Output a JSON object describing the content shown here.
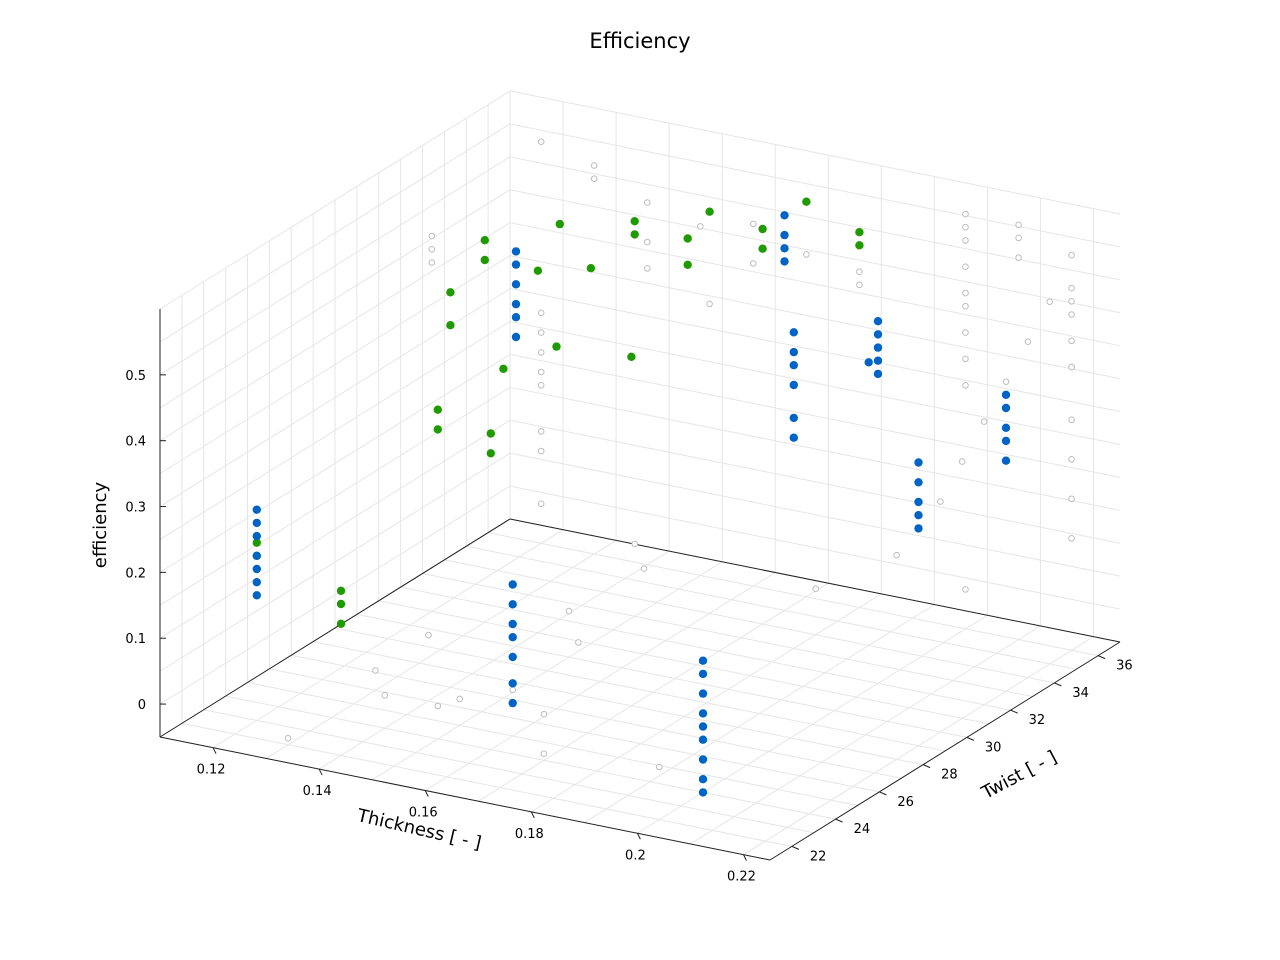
{
  "chart_data": {
    "type": "scatter",
    "title": "Efficiency",
    "xlabel": "Thickness [ - ]",
    "ylabel": "Twist [ - ]",
    "zlabel": "efficiency",
    "xlim": [
      0.11,
      0.225
    ],
    "ylim": [
      21,
      37
    ],
    "zlim": [
      -0.05,
      0.6
    ],
    "xticks": [
      "0.12",
      "0.14",
      "0.16",
      "0.18",
      "0.2",
      "0.22"
    ],
    "yticks": [
      "22",
      "24",
      "26",
      "28",
      "30",
      "32",
      "34",
      "36"
    ],
    "zticks": [
      "0",
      "0.1",
      "0.2",
      "0.3",
      "0.4",
      "0.5"
    ],
    "grid": true,
    "colors": {
      "background_points": "#bdbdbd",
      "green_points": "#1f9a00",
      "blue_points": "#0063c6"
    },
    "series": [
      {
        "style": "open-circle",
        "color": "#bdbdbd",
        "points": [
          [
            0.12,
            36,
            0.56
          ],
          [
            0.12,
            36,
            0.3
          ],
          [
            0.12,
            36,
            0.27
          ],
          [
            0.12,
            36,
            0.24
          ],
          [
            0.12,
            36,
            0.21
          ],
          [
            0.12,
            36,
            0.19
          ],
          [
            0.12,
            36,
            0.12
          ],
          [
            0.12,
            36,
            0.09
          ],
          [
            0.12,
            36,
            0.01
          ],
          [
            0.12,
            31,
            0.52
          ],
          [
            0.12,
            31,
            0.5
          ],
          [
            0.12,
            31,
            0.48
          ],
          [
            0.13,
            36,
            0.54
          ],
          [
            0.13,
            36,
            0.52
          ],
          [
            0.14,
            36,
            0.5
          ],
          [
            0.14,
            36,
            0.44
          ],
          [
            0.14,
            36,
            0.4
          ],
          [
            0.15,
            36,
            0.48
          ],
          [
            0.16,
            36,
            0.44
          ],
          [
            0.16,
            34,
            0.42
          ],
          [
            0.16,
            36,
            0.5
          ],
          [
            0.17,
            36,
            0.47
          ],
          [
            0.2,
            36,
            0.58
          ],
          [
            0.2,
            36,
            0.56
          ],
          [
            0.2,
            36,
            0.54
          ],
          [
            0.2,
            36,
            0.5
          ],
          [
            0.2,
            36,
            0.46
          ],
          [
            0.2,
            36,
            0.44
          ],
          [
            0.2,
            36,
            0.4
          ],
          [
            0.2,
            36,
            0.36
          ],
          [
            0.2,
            36,
            0.32
          ],
          [
            0.21,
            36,
            0.58
          ],
          [
            0.21,
            36,
            0.56
          ],
          [
            0.21,
            36,
            0.53
          ],
          [
            0.22,
            36,
            0.55
          ],
          [
            0.22,
            36,
            0.5
          ],
          [
            0.22,
            36,
            0.48
          ],
          [
            0.22,
            36,
            0.42
          ],
          [
            0.22,
            36,
            0.38
          ],
          [
            0.18,
            36,
            0.5
          ],
          [
            0.18,
            36,
            0.46
          ],
          [
            0.18,
            36,
            0.44
          ],
          [
            0.22,
            35,
            0.5
          ],
          [
            0.22,
            34,
            0.46
          ],
          [
            0.22,
            33,
            0.42
          ],
          [
            0.22,
            32,
            0.38
          ],
          [
            0.22,
            31,
            0.34
          ],
          [
            0.22,
            30,
            0.3
          ],
          [
            0.22,
            28,
            0.26
          ],
          [
            0.22,
            36,
            0.46
          ],
          [
            0.22,
            36,
            0.38
          ],
          [
            0.22,
            36,
            0.3
          ],
          [
            0.22,
            36,
            0.24
          ],
          [
            0.22,
            36,
            0.18
          ],
          [
            0.22,
            36,
            0.12
          ],
          [
            0.13,
            26,
            -0.02
          ],
          [
            0.14,
            24,
            0.0
          ],
          [
            0.15,
            24,
            0.0
          ],
          [
            0.15,
            25,
            -0.01
          ],
          [
            0.16,
            25,
            0.02
          ],
          [
            0.14,
            26,
            0.05
          ],
          [
            0.17,
            24,
            0.02
          ],
          [
            0.16,
            28,
            0.03
          ],
          [
            0.15,
            30,
            0.02
          ],
          [
            0.16,
            31,
            0.08
          ],
          [
            0.15,
            33,
            0.06
          ],
          [
            0.18,
            34,
            0.02
          ],
          [
            0.2,
            36,
            0.01
          ],
          [
            0.17,
            24,
            -0.04
          ],
          [
            0.13,
            22,
            -0.04
          ],
          [
            0.2,
            22,
            0.03
          ]
        ]
      },
      {
        "style": "filled-circle",
        "color": "#1f9a00",
        "points": [
          [
            0.13,
            31,
            0.53
          ],
          [
            0.13,
            31,
            0.5
          ],
          [
            0.14,
            31,
            0.5
          ],
          [
            0.14,
            32,
            0.55
          ],
          [
            0.15,
            31,
            0.52
          ],
          [
            0.15,
            33,
            0.55
          ],
          [
            0.15,
            33,
            0.53
          ],
          [
            0.16,
            33,
            0.54
          ],
          [
            0.16,
            33,
            0.5
          ],
          [
            0.16,
            34,
            0.56
          ],
          [
            0.17,
            34,
            0.55
          ],
          [
            0.17,
            34,
            0.52
          ],
          [
            0.14,
            27,
            0.55
          ],
          [
            0.14,
            27,
            0.5
          ],
          [
            0.15,
            27,
            0.45
          ],
          [
            0.16,
            27,
            0.5
          ],
          [
            0.17,
            28,
            0.48
          ],
          [
            0.15,
            24,
            0.45
          ],
          [
            0.15,
            24,
            0.42
          ],
          [
            0.16,
            24,
            0.43
          ],
          [
            0.16,
            24,
            0.4
          ],
          [
            0.14,
            22,
            0.2
          ],
          [
            0.14,
            22,
            0.18
          ],
          [
            0.14,
            22,
            0.15
          ],
          [
            0.12,
            23,
            0.22
          ],
          [
            0.12,
            23,
            0.2
          ],
          [
            0.17,
            36,
            0.55
          ],
          [
            0.18,
            36,
            0.52
          ],
          [
            0.18,
            36,
            0.5
          ]
        ]
      },
      {
        "style": "filled-circle",
        "color": "#0063c6",
        "points": [
          [
            0.12,
            23,
            0.27
          ],
          [
            0.12,
            23,
            0.25
          ],
          [
            0.12,
            23,
            0.23
          ],
          [
            0.12,
            23,
            0.2
          ],
          [
            0.12,
            23,
            0.18
          ],
          [
            0.12,
            23,
            0.16
          ],
          [
            0.12,
            23,
            0.14
          ],
          [
            0.14,
            30,
            0.55
          ],
          [
            0.14,
            30,
            0.53
          ],
          [
            0.14,
            30,
            0.5
          ],
          [
            0.14,
            30,
            0.47
          ],
          [
            0.14,
            30,
            0.45
          ],
          [
            0.14,
            30,
            0.42
          ],
          [
            0.17,
            35,
            0.55
          ],
          [
            0.17,
            35,
            0.52
          ],
          [
            0.17,
            35,
            0.5
          ],
          [
            0.17,
            35,
            0.48
          ],
          [
            0.18,
            33,
            0.43
          ],
          [
            0.18,
            33,
            0.4
          ],
          [
            0.18,
            33,
            0.38
          ],
          [
            0.18,
            33,
            0.35
          ],
          [
            0.18,
            33,
            0.3
          ],
          [
            0.18,
            33,
            0.27
          ],
          [
            0.19,
            34,
            0.38
          ],
          [
            0.16,
            25,
            0.18
          ],
          [
            0.16,
            25,
            0.15
          ],
          [
            0.16,
            25,
            0.12
          ],
          [
            0.16,
            25,
            0.1
          ],
          [
            0.16,
            25,
            0.07
          ],
          [
            0.16,
            25,
            0.03
          ],
          [
            0.16,
            25,
            0.0
          ],
          [
            0.2,
            24,
            0.15
          ],
          [
            0.2,
            24,
            0.13
          ],
          [
            0.2,
            24,
            0.1
          ],
          [
            0.2,
            24,
            0.07
          ],
          [
            0.2,
            24,
            0.05
          ],
          [
            0.2,
            24,
            0.03
          ],
          [
            0.2,
            24,
            0.0
          ],
          [
            0.2,
            24,
            -0.03
          ],
          [
            0.2,
            24,
            -0.05
          ],
          [
            0.2,
            32,
            0.5
          ],
          [
            0.2,
            32,
            0.48
          ],
          [
            0.2,
            32,
            0.46
          ],
          [
            0.2,
            32,
            0.44
          ],
          [
            0.2,
            32,
            0.42
          ],
          [
            0.22,
            29,
            0.38
          ],
          [
            0.22,
            29,
            0.35
          ],
          [
            0.22,
            29,
            0.32
          ],
          [
            0.22,
            29,
            0.3
          ],
          [
            0.22,
            29,
            0.28
          ],
          [
            0.22,
            33,
            0.4
          ],
          [
            0.22,
            33,
            0.38
          ],
          [
            0.22,
            33,
            0.35
          ],
          [
            0.22,
            33,
            0.33
          ],
          [
            0.22,
            33,
            0.3
          ]
        ]
      }
    ]
  }
}
